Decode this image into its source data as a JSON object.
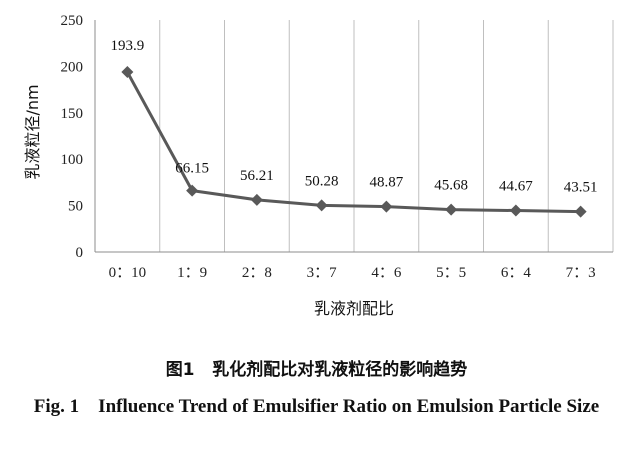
{
  "chart_data": {
    "type": "line",
    "categories": [
      "0：10",
      "1：9",
      "2：8",
      "3：7",
      "4：6",
      "5：5",
      "6：4",
      "7：3"
    ],
    "values": [
      193.9,
      66.15,
      56.21,
      50.28,
      48.87,
      45.68,
      44.67,
      43.51
    ],
    "data_labels": [
      "193.9",
      "66.15",
      "56.21",
      "50.28",
      "48.87",
      "45.68",
      "44.67",
      "43.51"
    ],
    "xlabel": "乳液剂配比",
    "ylabel": "乳液粒径/nm",
    "ylim": [
      0,
      250
    ],
    "yticks": [
      "0",
      "50",
      "100",
      "150",
      "200",
      "250"
    ],
    "grid": "vertical",
    "line_color": "#595959",
    "marker": "diamond"
  },
  "caption": {
    "cn_label": "图1",
    "cn_text": "乳化剂配比对乳液粒径的影响趋势",
    "en_label": "Fig. 1",
    "en_text": "Influence Trend of Emulsifier Ratio on Emulsion Particle Size"
  }
}
